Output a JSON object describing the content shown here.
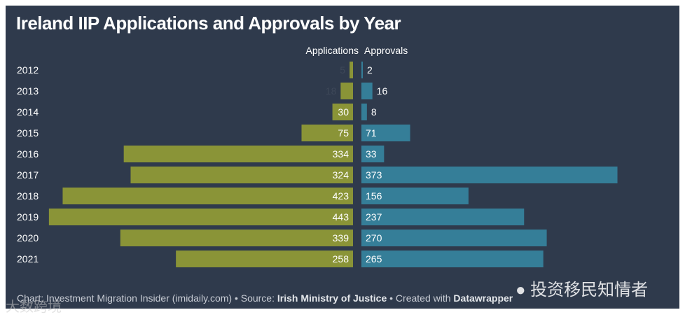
{
  "chart_data": {
    "type": "bar",
    "orientation": "horizontal-diverging",
    "title": "Ireland IIP Applications and Approvals by Year",
    "categories": [
      "2012",
      "2013",
      "2014",
      "2015",
      "2016",
      "2017",
      "2018",
      "2019",
      "2020",
      "2021"
    ],
    "series": [
      {
        "name": "Applications",
        "color": "#8a9437",
        "values": [
          5,
          18,
          30,
          75,
          334,
          324,
          423,
          443,
          339,
          258
        ]
      },
      {
        "name": "Approvals",
        "color": "#357e98",
        "values": [
          2,
          16,
          8,
          71,
          33,
          373,
          156,
          237,
          270,
          265
        ]
      }
    ],
    "xlim": [
      0,
      450
    ]
  },
  "footer": {
    "prefix": "Chart: Investment Migration Insider (imidaily.com) • Source: ",
    "source": "Irish Ministry of Justice",
    "middle": " • Created with ",
    "tool": "Datawrapper"
  },
  "watermarks": {
    "right": "投资移民知情者",
    "left": "大数跨境"
  }
}
